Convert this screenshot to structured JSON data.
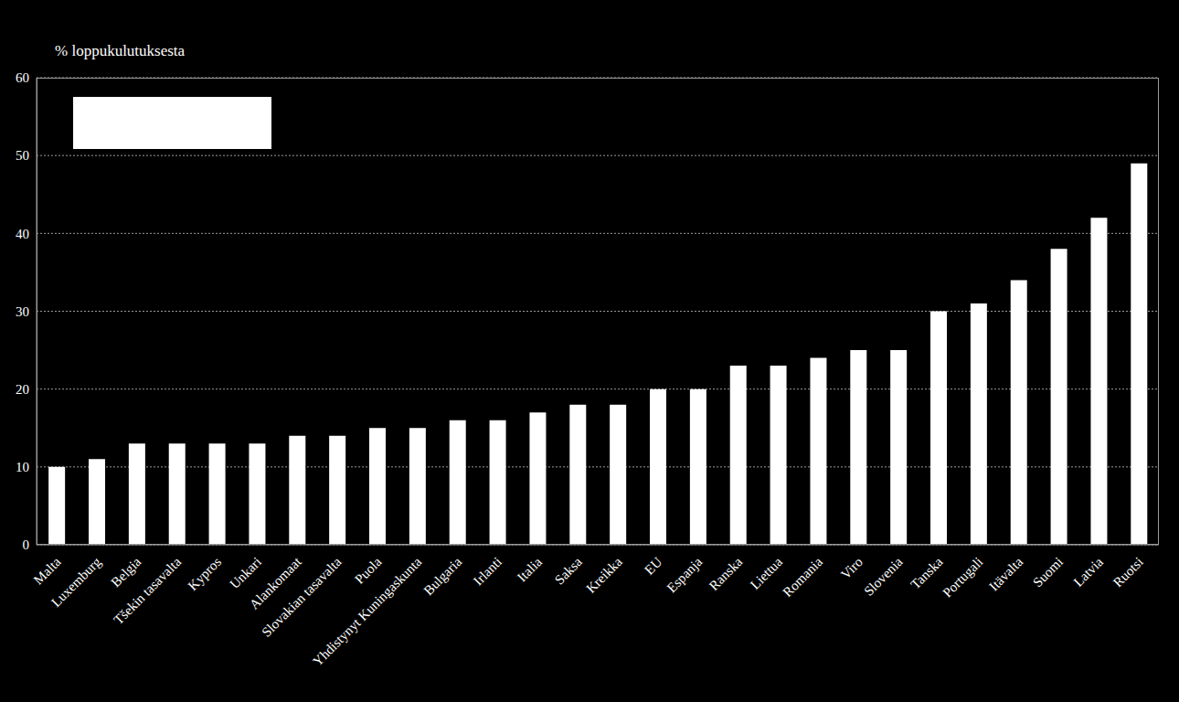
{
  "chart_data": {
    "type": "bar",
    "y_label": "% loppukulutuksesta",
    "categories": [
      "Malta",
      "Luxemburg",
      "Belgia",
      "Tšekin tasavalta",
      "Kypros",
      "Unkari",
      "Alankomaat",
      "Slovakian tasavalta",
      "Puola",
      "Yhdistynyt Kuningaskunta",
      "Bulgaria",
      "Irlanti",
      "Italia",
      "Saksa",
      "Kreikka",
      "EU",
      "Espanja",
      "Ranska",
      "Liettua",
      "Romania",
      "Viro",
      "Slovenia",
      "Tanska",
      "Portugali",
      "Itävalta",
      "Suomi",
      "Latvia",
      "Ruotsi"
    ],
    "values": [
      10,
      11,
      13,
      13,
      13,
      13,
      14,
      14,
      15,
      15,
      16,
      16,
      17,
      18,
      18,
      20,
      20,
      23,
      23,
      24,
      25,
      25,
      30,
      31,
      34,
      38,
      42,
      49
    ],
    "color": "#ffffff",
    "ylim": [
      0,
      60
    ],
    "yticks": [
      0,
      10,
      20,
      30,
      40,
      50,
      60
    ],
    "grid": true
  }
}
